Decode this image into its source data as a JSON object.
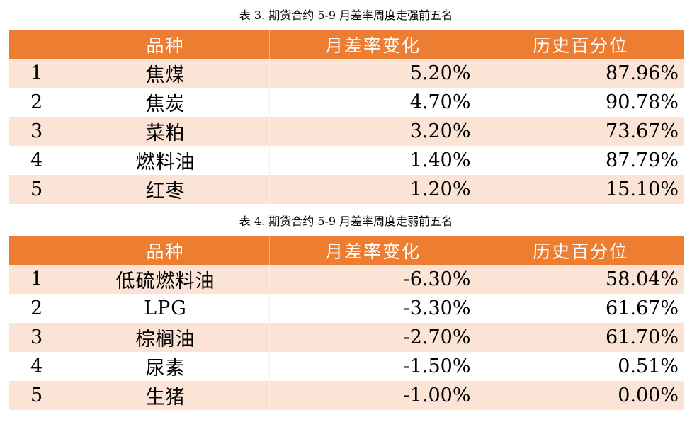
{
  "tables": [
    {
      "caption": "表 3. 期货合约 5-9 月差率周度走强前五名",
      "headers": [
        "",
        "品种",
        "月差率变化",
        "历史百分位"
      ],
      "rows": [
        {
          "rank": "1",
          "name": "焦煤",
          "change": "5.20%",
          "pct": "87.96%"
        },
        {
          "rank": "2",
          "name": "焦炭",
          "change": "4.70%",
          "pct": "90.78%"
        },
        {
          "rank": "3",
          "name": "菜粕",
          "change": "3.20%",
          "pct": "73.67%"
        },
        {
          "rank": "4",
          "name": "燃料油",
          "change": "1.40%",
          "pct": "87.79%"
        },
        {
          "rank": "5",
          "name": "红枣",
          "change": "1.20%",
          "pct": "15.10%"
        }
      ]
    },
    {
      "caption": "表 4. 期货合约 5-9 月差率周度走弱前五名",
      "headers": [
        "",
        "品种",
        "月差率变化",
        "历史百分位"
      ],
      "rows": [
        {
          "rank": "1",
          "name": "低硫燃料油",
          "change": "-6.30%",
          "pct": "58.04%"
        },
        {
          "rank": "2",
          "name": "LPG",
          "change": "-3.30%",
          "pct": "61.67%"
        },
        {
          "rank": "3",
          "name": "棕榈油",
          "change": "-2.70%",
          "pct": "61.70%"
        },
        {
          "rank": "4",
          "name": "尿素",
          "change": "-1.50%",
          "pct": "0.51%"
        },
        {
          "rank": "5",
          "name": "生猪",
          "change": "-1.00%",
          "pct": "0.00%"
        }
      ]
    }
  ],
  "colors": {
    "header_bg": "#ed7d31",
    "band": "#fbe4d5",
    "header_text": "#ffffff"
  }
}
